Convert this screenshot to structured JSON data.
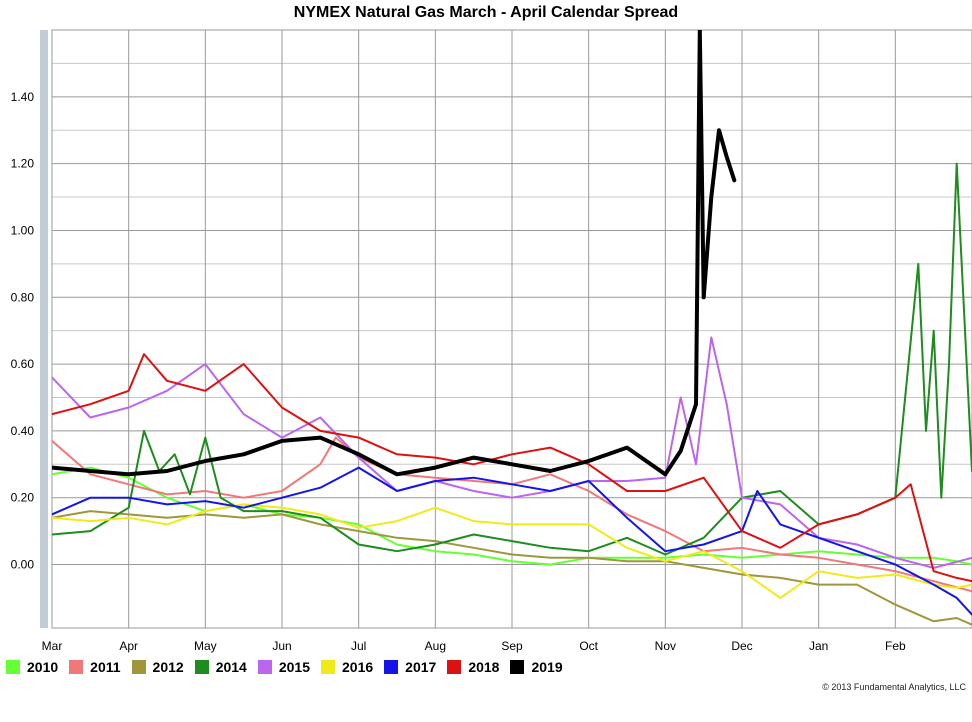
{
  "chart_data": {
    "type": "line",
    "title": "NYMEX Natural Gas March - April Calendar Spread",
    "xlabel": "",
    "ylabel": "",
    "x_ticks": [
      "Mar",
      "Apr",
      "May",
      "Jun",
      "Jul",
      "Aug",
      "Sep",
      "Oct",
      "Nov",
      "Dec",
      "Jan",
      "Feb"
    ],
    "y_ticks": [
      "1.40",
      "1.20",
      "1.00",
      "0.80",
      "0.60",
      "0.40",
      "0.20",
      "0.00"
    ],
    "ylim": [
      -0.19,
      1.6
    ],
    "xlim": [
      0,
      12
    ],
    "grid": true,
    "legend_position": "bottom-left",
    "series": [
      {
        "name": "2010",
        "color": "#66ff33",
        "width": 2,
        "x": [
          0,
          0.5,
          1,
          1.5,
          2,
          2.5,
          3,
          3.5,
          4,
          4.5,
          5,
          5.5,
          6,
          6.5,
          7,
          7.5,
          8,
          8.5,
          9,
          9.5,
          10,
          10.5,
          11,
          11.5,
          11.8,
          12
        ],
        "y": [
          0.27,
          0.29,
          0.26,
          0.2,
          0.16,
          0.18,
          0.15,
          0.14,
          0.12,
          0.06,
          0.04,
          0.03,
          0.01,
          0,
          0.02,
          0.02,
          0.02,
          0.03,
          0.02,
          0.03,
          0.04,
          0.03,
          0.02,
          0.02,
          0.01,
          0.0
        ]
      },
      {
        "name": "2011",
        "color": "#f07878",
        "width": 2,
        "x": [
          0,
          0.5,
          1,
          1.5,
          2,
          2.5,
          3,
          3.5,
          3.7,
          4,
          4.5,
          5,
          5.5,
          6,
          6.5,
          7,
          7.5,
          8,
          8.5,
          9,
          9.5,
          10,
          10.5,
          11,
          11.5,
          12
        ],
        "y": [
          0.37,
          0.27,
          0.24,
          0.21,
          0.22,
          0.2,
          0.22,
          0.3,
          0.38,
          0.32,
          0.27,
          0.26,
          0.25,
          0.24,
          0.27,
          0.22,
          0.15,
          0.1,
          0.04,
          0.05,
          0.03,
          0.02,
          0.0,
          -0.02,
          -0.05,
          -0.08
        ]
      },
      {
        "name": "2012",
        "color": "#a0963c",
        "width": 2,
        "x": [
          0,
          0.5,
          1,
          1.5,
          2,
          2.5,
          3,
          3.5,
          4,
          4.5,
          5,
          5.5,
          6,
          6.5,
          7,
          7.5,
          8,
          8.5,
          9,
          9.5,
          10,
          10.5,
          11,
          11.5,
          11.8,
          12
        ],
        "y": [
          0.14,
          0.16,
          0.15,
          0.14,
          0.15,
          0.14,
          0.15,
          0.12,
          0.1,
          0.08,
          0.07,
          0.05,
          0.03,
          0.02,
          0.02,
          0.01,
          0.01,
          -0.01,
          -0.03,
          -0.04,
          -0.06,
          -0.06,
          -0.12,
          -0.17,
          -0.16,
          -0.18
        ]
      },
      {
        "name": "2014",
        "color": "#1e8c1e",
        "width": 2,
        "x": [
          0,
          0.5,
          1,
          1.2,
          1.4,
          1.6,
          1.8,
          2,
          2.2,
          2.5,
          3,
          3.5,
          4,
          4.5,
          5,
          5.5,
          6,
          6.5,
          7,
          7.5,
          8,
          8.5,
          9,
          9.5,
          10,
          10.5,
          11,
          11.3,
          11.4,
          11.5,
          11.6,
          11.7,
          11.8,
          12
        ],
        "y": [
          0.09,
          0.1,
          0.17,
          0.4,
          0.28,
          0.33,
          0.21,
          0.38,
          0.2,
          0.16,
          0.16,
          0.14,
          0.06,
          0.04,
          0.06,
          0.09,
          0.07,
          0.05,
          0.04,
          0.08,
          0.03,
          0.08,
          0.2,
          0.22,
          0.12,
          0.15,
          0.2,
          0.9,
          0.4,
          0.7,
          0.2,
          0.6,
          1.2,
          0.28
        ]
      },
      {
        "name": "2015",
        "color": "#bb66ee",
        "width": 2,
        "x": [
          0,
          0.5,
          1,
          1.5,
          2,
          2.5,
          3,
          3.5,
          4,
          4.5,
          5,
          5.5,
          6,
          6.5,
          7,
          7.5,
          8,
          8.2,
          8.4,
          8.6,
          8.8,
          9,
          9.5,
          10,
          10.5,
          11,
          11.5,
          12
        ],
        "y": [
          0.56,
          0.44,
          0.47,
          0.52,
          0.6,
          0.45,
          0.38,
          0.44,
          0.32,
          0.22,
          0.25,
          0.22,
          0.2,
          0.22,
          0.25,
          0.25,
          0.26,
          0.5,
          0.3,
          0.68,
          0.48,
          0.2,
          0.18,
          0.08,
          0.06,
          0.02,
          -0.01,
          0.02
        ]
      },
      {
        "name": "2016",
        "color": "#f2ea18",
        "width": 2,
        "x": [
          0,
          0.5,
          1,
          1.5,
          2,
          2.5,
          3,
          3.5,
          4,
          4.5,
          5,
          5.5,
          6,
          6.5,
          7,
          7.5,
          8,
          8.5,
          9,
          9.5,
          10,
          10.5,
          11,
          11.5,
          11.8,
          12
        ],
        "y": [
          0.14,
          0.13,
          0.14,
          0.12,
          0.16,
          0.18,
          0.17,
          0.15,
          0.11,
          0.13,
          0.17,
          0.13,
          0.12,
          0.12,
          0.12,
          0.05,
          0.01,
          0.04,
          -0.02,
          -0.1,
          -0.02,
          -0.04,
          -0.03,
          -0.06,
          -0.07,
          -0.06
        ]
      },
      {
        "name": "2017",
        "color": "#1515e8",
        "width": 2,
        "x": [
          0,
          0.5,
          1,
          1.5,
          2,
          2.5,
          3,
          3.5,
          4,
          4.5,
          5,
          5.5,
          6,
          6.5,
          7,
          7.5,
          8,
          8.5,
          9,
          9.2,
          9.5,
          10,
          10.5,
          11,
          11.5,
          11.8,
          12
        ],
        "y": [
          0.15,
          0.2,
          0.2,
          0.18,
          0.19,
          0.17,
          0.2,
          0.23,
          0.29,
          0.22,
          0.25,
          0.26,
          0.24,
          0.22,
          0.25,
          0.14,
          0.04,
          0.06,
          0.1,
          0.22,
          0.12,
          0.08,
          0.04,
          0.0,
          -0.06,
          -0.1,
          -0.15
        ]
      },
      {
        "name": "2018",
        "color": "#dd1111",
        "width": 2,
        "x": [
          0,
          0.5,
          1,
          1.2,
          1.5,
          2,
          2.5,
          3,
          3.5,
          4,
          4.5,
          5,
          5.5,
          6,
          6.5,
          7,
          7.5,
          8,
          8.5,
          9,
          9.5,
          10,
          10.5,
          11,
          11.2,
          11.5,
          11.8,
          12
        ],
        "y": [
          0.45,
          0.48,
          0.52,
          0.63,
          0.55,
          0.52,
          0.6,
          0.47,
          0.4,
          0.38,
          0.33,
          0.32,
          0.3,
          0.33,
          0.35,
          0.3,
          0.22,
          0.22,
          0.26,
          0.1,
          0.05,
          0.12,
          0.15,
          0.2,
          0.24,
          -0.02,
          -0.04,
          -0.05
        ]
      },
      {
        "name": "2019",
        "color": "#000000",
        "width": 4,
        "x": [
          0,
          0.5,
          1,
          1.5,
          2,
          2.5,
          3,
          3.5,
          4,
          4.5,
          5,
          5.5,
          6,
          6.5,
          7,
          7.5,
          8,
          8.2,
          8.4,
          8.45,
          8.5,
          8.6,
          8.7,
          8.8,
          8.9
        ],
        "y": [
          0.29,
          0.28,
          0.27,
          0.28,
          0.31,
          0.33,
          0.37,
          0.38,
          0.33,
          0.27,
          0.29,
          0.32,
          0.3,
          0.28,
          0.31,
          0.35,
          0.27,
          0.34,
          0.48,
          1.6,
          0.8,
          1.1,
          1.3,
          1.22,
          1.15
        ]
      }
    ]
  },
  "copyright": "© 2013 Fundamental Analytics, LLC"
}
